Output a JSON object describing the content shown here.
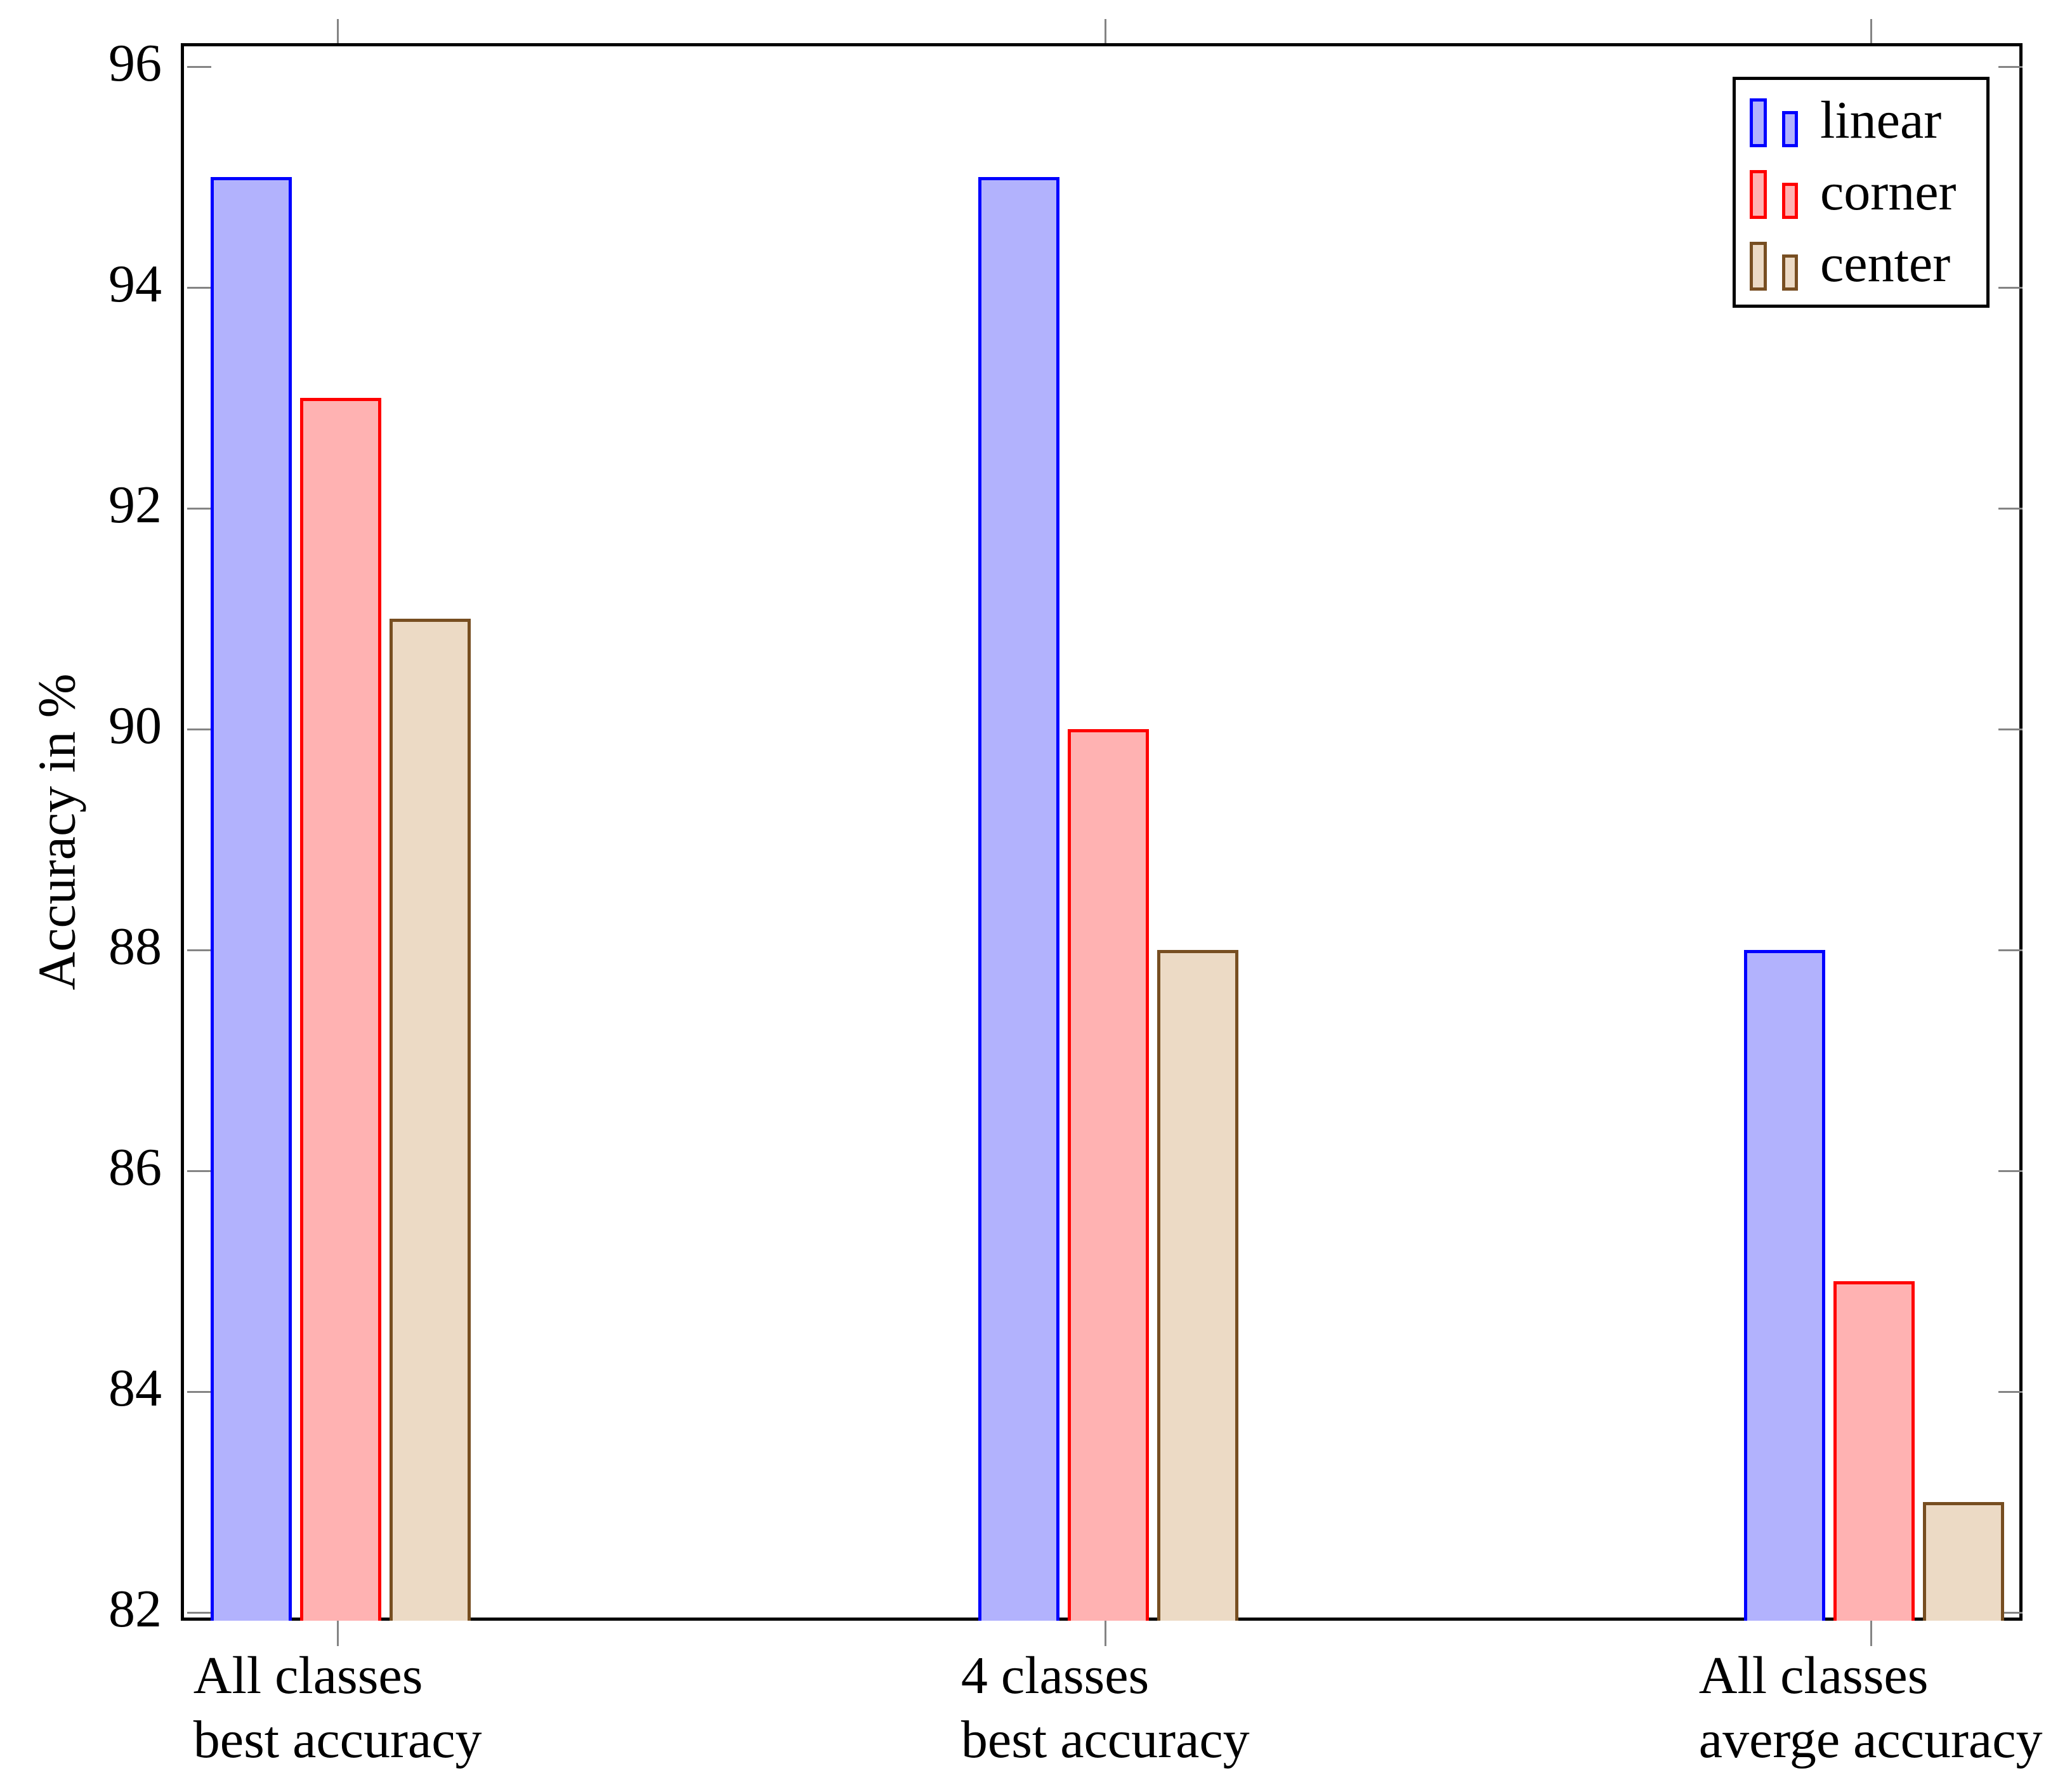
{
  "chart_data": {
    "type": "bar",
    "title": "",
    "ylabel": "Accuracy in %",
    "xlabel": "",
    "categories": [
      [
        "All classes",
        "best accuracy"
      ],
      [
        "4 classes",
        "best accuracy"
      ],
      [
        "All classes",
        "averge accuracy"
      ]
    ],
    "series": [
      {
        "name": "linear",
        "values": [
          95,
          95,
          88
        ],
        "fill": "#b2b2fd",
        "border": "#0000ff"
      },
      {
        "name": "corner",
        "values": [
          93,
          90,
          85
        ],
        "fill": "#ffb2b2",
        "border": "#ff0000"
      },
      {
        "name": "center",
        "values": [
          91,
          88,
          83
        ],
        "fill": "#ecdac5",
        "border": "#774e21"
      }
    ],
    "yticks": [
      82,
      84,
      86,
      88,
      90,
      92,
      94,
      96
    ],
    "ytick_labels": [
      "82",
      "84",
      "86",
      "88",
      "90",
      "92",
      "94",
      "96"
    ],
    "ylim": [
      81.925,
      96.155
    ],
    "grid": false,
    "legend_position": "top-right",
    "tick_color": "#848484",
    "axis_color": "#000000",
    "background_color": "#ffffff"
  }
}
